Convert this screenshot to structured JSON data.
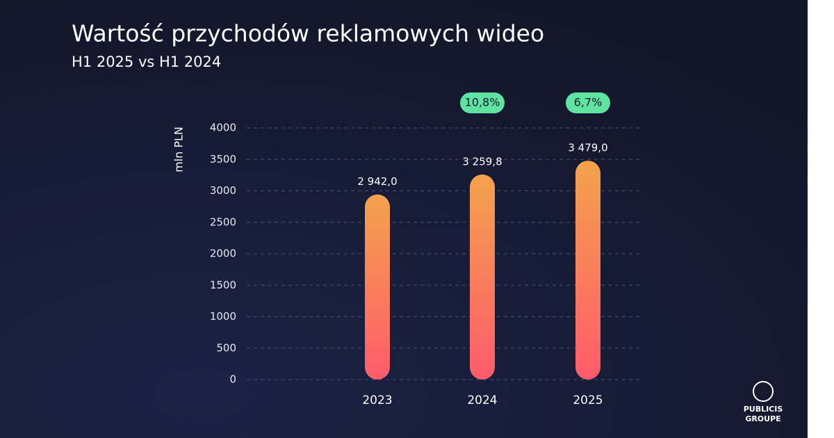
{
  "chart_data": {
    "type": "bar",
    "title": "Wartość przychodów reklamowych wideo",
    "subtitle": "H1 2025 vs H1 2024",
    "y_axis_label": "mln PLN",
    "categories": [
      "2023",
      "2024",
      "2025"
    ],
    "values": [
      2942.0,
      3259.8,
      3479.0
    ],
    "value_labels": [
      "2 942,0",
      "3 259,8",
      "3 479,0"
    ],
    "growth_labels": [
      null,
      "10,8%",
      "6,7%"
    ],
    "ylim": [
      0,
      4000
    ],
    "yticks": [
      0,
      500,
      1000,
      1500,
      2000,
      2500,
      3000,
      3500,
      4000
    ],
    "grid": true,
    "color_top": "#f3a24c",
    "color_bottom": "#ff5b6b",
    "growth_color": "#5ee3a1",
    "brand": [
      "PUBLICIS",
      "GROUPE"
    ]
  }
}
